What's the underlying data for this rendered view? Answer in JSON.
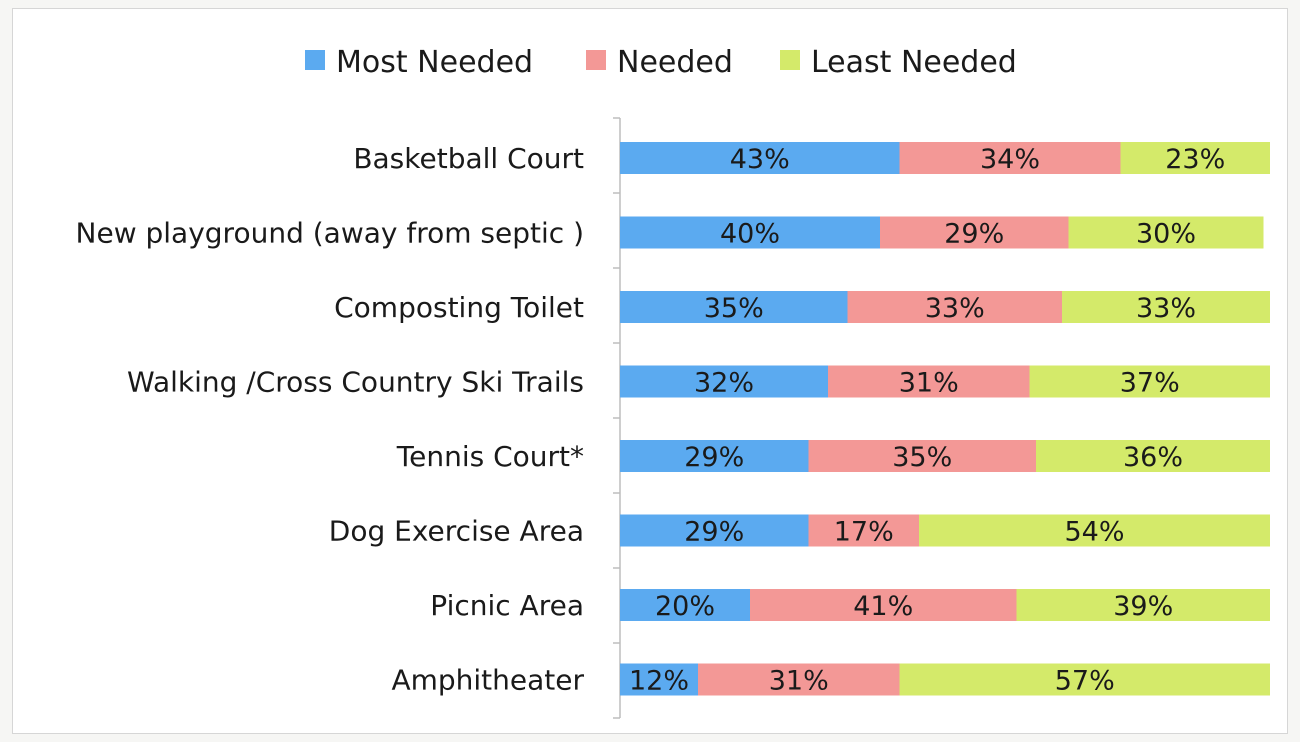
{
  "chart_data": {
    "type": "bar",
    "orientation": "horizontal",
    "stacked": "percent",
    "title": "",
    "xlabel": "",
    "ylabel": "",
    "xlim": [
      0,
      100
    ],
    "grid": false,
    "legend_position": "top",
    "categories": [
      "Basketball Court",
      "New playground (away from septic )",
      "Composting Toilet",
      "Walking /Cross Country Ski Trails",
      "Tennis Court*",
      "Dog Exercise Area",
      "Picnic Area",
      "Amphitheater"
    ],
    "series": [
      {
        "name": "Most Needed",
        "color": "#5baaf0",
        "values": [
          43,
          40,
          35,
          32,
          29,
          29,
          20,
          12
        ]
      },
      {
        "name": "Needed",
        "color": "#f39896",
        "values": [
          34,
          29,
          33,
          31,
          35,
          17,
          41,
          31
        ]
      },
      {
        "name": "Least Needed",
        "color": "#d4ea6a",
        "values": [
          23,
          30,
          33,
          37,
          36,
          54,
          39,
          57
        ]
      }
    ],
    "value_suffix": "%"
  }
}
